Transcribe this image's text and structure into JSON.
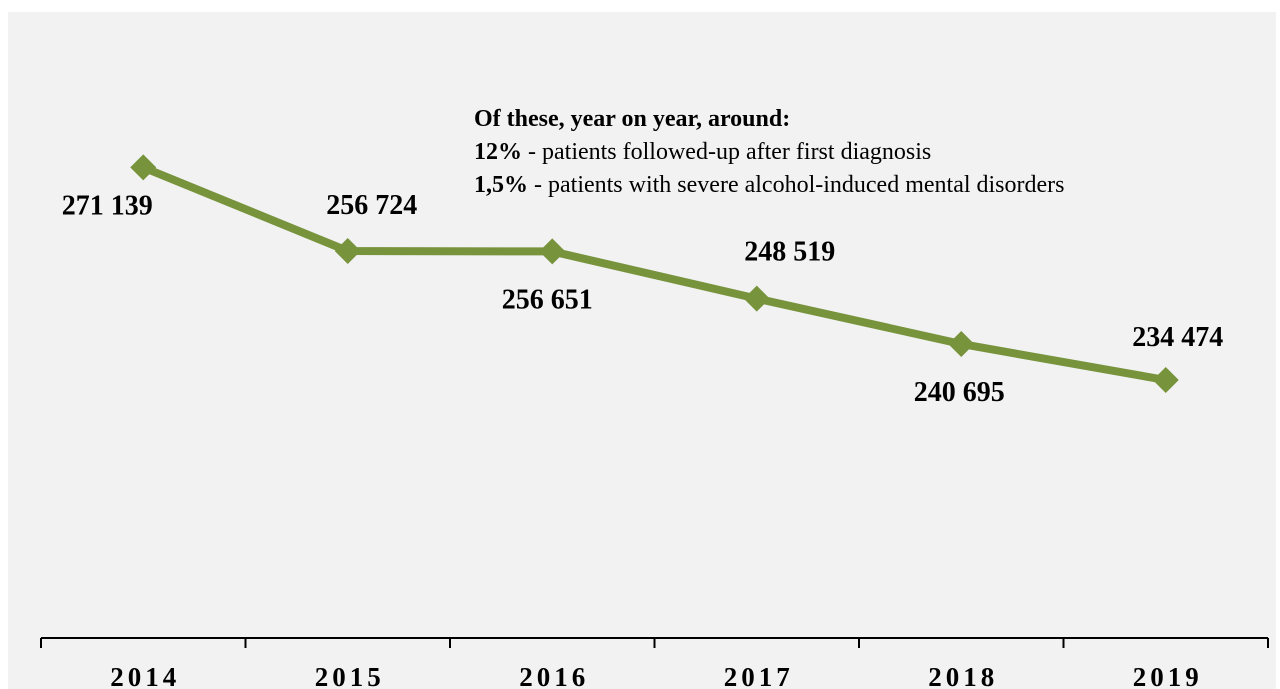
{
  "chart_data": {
    "type": "line",
    "categories": [
      "2014",
      "2015",
      "2016",
      "2017",
      "2018",
      "2019"
    ],
    "series": [
      {
        "values": [
          271139,
          256724,
          256651,
          248519,
          240695,
          234474
        ],
        "value_labels": [
          "271 139",
          "256 724",
          "256 651",
          "248 519",
          "240 695",
          "234 474"
        ]
      }
    ],
    "ylim": [
      190000,
      300000
    ],
    "grid": false,
    "line_color": "#77933c",
    "annotation": {
      "heading": "Of these, year on year, around:",
      "items": [
        {
          "value": "12%",
          "text": " - patients followed-up after first diagnosis"
        },
        {
          "value": "1,5%",
          "text": " - patients with severe alcohol-induced mental disorders"
        }
      ]
    }
  }
}
